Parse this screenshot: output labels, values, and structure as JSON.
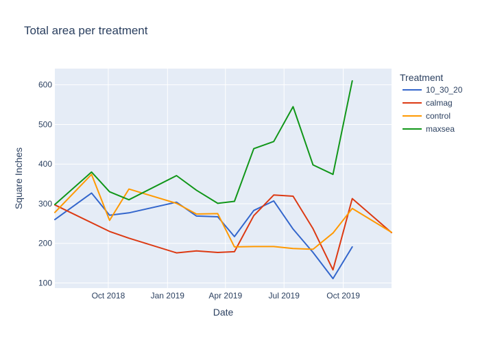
{
  "chart_data": {
    "type": "line",
    "title": "Total area per treatment",
    "xlabel": "Date",
    "ylabel": "Square Inches",
    "x_ticks": [
      {
        "label": "Oct 2018",
        "date": "2018-10-01"
      },
      {
        "label": "Jan 2019",
        "date": "2019-01-01"
      },
      {
        "label": "Apr 2019",
        "date": "2019-04-01"
      },
      {
        "label": "Jul 2019",
        "date": "2019-07-01"
      },
      {
        "label": "Oct 2019",
        "date": "2019-10-01"
      }
    ],
    "y_ticks": [
      100,
      200,
      300,
      400,
      500,
      600
    ],
    "xlim": [
      "2018-07-10",
      "2019-12-15"
    ],
    "ylim": [
      87,
      641
    ],
    "grid": true,
    "legend": {
      "title": "Treatment",
      "position": "right"
    },
    "series": [
      {
        "name": "10_30_20",
        "color": "#3366cc",
        "points": [
          {
            "x": "2018-07-10",
            "y": 260
          },
          {
            "x": "2018-09-05",
            "y": 327
          },
          {
            "x": "2018-10-03",
            "y": 271
          },
          {
            "x": "2018-11-02",
            "y": 277
          },
          {
            "x": "2019-01-15",
            "y": 304
          },
          {
            "x": "2019-02-15",
            "y": 269
          },
          {
            "x": "2019-03-20",
            "y": 267
          },
          {
            "x": "2019-04-15",
            "y": 217
          },
          {
            "x": "2019-05-15",
            "y": 283
          },
          {
            "x": "2019-06-15",
            "y": 307
          },
          {
            "x": "2019-07-15",
            "y": 236
          },
          {
            "x": "2019-08-15",
            "y": 177
          },
          {
            "x": "2019-09-15",
            "y": 111
          },
          {
            "x": "2019-10-15",
            "y": 191
          }
        ]
      },
      {
        "name": "calmag",
        "color": "#dc3912",
        "points": [
          {
            "x": "2018-07-10",
            "y": 297
          },
          {
            "x": "2018-10-03",
            "y": 230
          },
          {
            "x": "2018-11-02",
            "y": 213
          },
          {
            "x": "2019-01-15",
            "y": 176
          },
          {
            "x": "2019-02-15",
            "y": 181
          },
          {
            "x": "2019-03-20",
            "y": 177
          },
          {
            "x": "2019-04-15",
            "y": 179
          },
          {
            "x": "2019-05-15",
            "y": 270
          },
          {
            "x": "2019-06-15",
            "y": 322
          },
          {
            "x": "2019-07-15",
            "y": 319
          },
          {
            "x": "2019-08-15",
            "y": 237
          },
          {
            "x": "2019-09-15",
            "y": 133
          },
          {
            "x": "2019-10-15",
            "y": 313
          },
          {
            "x": "2019-12-15",
            "y": 227
          }
        ]
      },
      {
        "name": "control",
        "color": "#ff9900",
        "points": [
          {
            "x": "2018-07-10",
            "y": 278
          },
          {
            "x": "2018-09-05",
            "y": 374
          },
          {
            "x": "2018-10-03",
            "y": 258
          },
          {
            "x": "2018-11-02",
            "y": 337
          },
          {
            "x": "2019-01-15",
            "y": 301
          },
          {
            "x": "2019-02-15",
            "y": 274
          },
          {
            "x": "2019-03-20",
            "y": 275
          },
          {
            "x": "2019-04-15",
            "y": 191
          },
          {
            "x": "2019-05-15",
            "y": 192
          },
          {
            "x": "2019-06-15",
            "y": 192
          },
          {
            "x": "2019-07-15",
            "y": 187
          },
          {
            "x": "2019-08-15",
            "y": 185
          },
          {
            "x": "2019-09-15",
            "y": 226
          },
          {
            "x": "2019-10-15",
            "y": 288
          },
          {
            "x": "2019-12-15",
            "y": 228
          }
        ]
      },
      {
        "name": "maxsea",
        "color": "#109618",
        "points": [
          {
            "x": "2018-07-10",
            "y": 298
          },
          {
            "x": "2018-09-05",
            "y": 380
          },
          {
            "x": "2018-10-03",
            "y": 330
          },
          {
            "x": "2018-11-02",
            "y": 310
          },
          {
            "x": "2019-01-15",
            "y": 371
          },
          {
            "x": "2019-02-15",
            "y": 334
          },
          {
            "x": "2019-03-20",
            "y": 301
          },
          {
            "x": "2019-04-15",
            "y": 306
          },
          {
            "x": "2019-05-15",
            "y": 439
          },
          {
            "x": "2019-06-15",
            "y": 457
          },
          {
            "x": "2019-07-15",
            "y": 545
          },
          {
            "x": "2019-08-15",
            "y": 398
          },
          {
            "x": "2019-09-15",
            "y": 374
          },
          {
            "x": "2019-10-15",
            "y": 610
          }
        ]
      }
    ]
  }
}
